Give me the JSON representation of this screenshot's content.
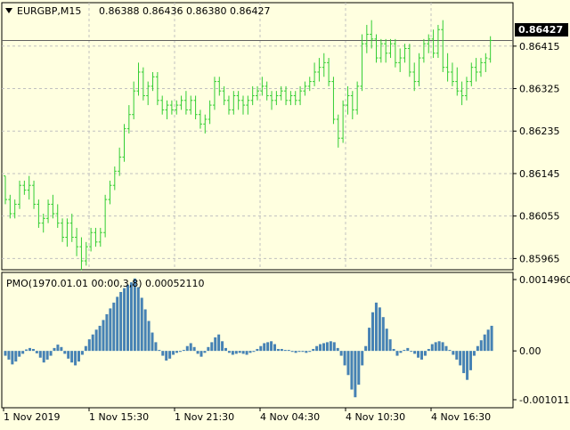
{
  "header": {
    "symbol_timeframe": "EURGBP,M15",
    "ohlc": "0.86388 0.86436 0.86380 0.86427",
    "dropdown_icon": "triangle-down-icon"
  },
  "current_price_label": "0.86427",
  "indicator": {
    "label": "PMO(1970.01.01 00:00,3,8) 0.00052110",
    "axis_labels": [
      "0.0014960",
      "0.00",
      "-0.0010112"
    ]
  },
  "colors": {
    "background": "#ffffe0",
    "candles": "#32cd32",
    "histogram": "#4682b4",
    "grid": "#c0c0c0",
    "frame": "#000000"
  },
  "chart_data": [
    {
      "type": "bar",
      "title": "EURGBP,M15",
      "series": [
        {
          "name": "EURGBP,M15",
          "ohlc": [
            [
              0.8614,
              0.8614,
              0.8608,
              0.8609
            ],
            [
              0.8609,
              0.861,
              0.8605,
              0.8606
            ],
            [
              0.8606,
              0.8609,
              0.8605,
              0.8608
            ],
            [
              0.8608,
              0.8613,
              0.8607,
              0.8612
            ],
            [
              0.8612,
              0.8613,
              0.861,
              0.8611
            ],
            [
              0.8611,
              0.8614,
              0.8609,
              0.8612
            ],
            [
              0.8612,
              0.8613,
              0.8607,
              0.8608
            ],
            [
              0.8608,
              0.8609,
              0.8603,
              0.8604
            ],
            [
              0.8604,
              0.8606,
              0.8602,
              0.8605
            ],
            [
              0.8605,
              0.8609,
              0.8604,
              0.8608
            ],
            [
              0.8608,
              0.861,
              0.8605,
              0.8606
            ],
            [
              0.8606,
              0.8608,
              0.8603,
              0.8604
            ],
            [
              0.8604,
              0.8605,
              0.86,
              0.8601
            ],
            [
              0.8601,
              0.8605,
              0.8599,
              0.8604
            ],
            [
              0.8604,
              0.8606,
              0.86,
              0.8601
            ],
            [
              0.8601,
              0.8603,
              0.8597,
              0.8599
            ],
            [
              0.8599,
              0.8601,
              0.8594,
              0.8596
            ],
            [
              0.8596,
              0.86,
              0.8595,
              0.8599
            ],
            [
              0.8599,
              0.8603,
              0.8598,
              0.8602
            ],
            [
              0.8602,
              0.8603,
              0.8599,
              0.86
            ],
            [
              0.86,
              0.8603,
              0.8599,
              0.8602
            ],
            [
              0.8602,
              0.861,
              0.8601,
              0.8609
            ],
            [
              0.8609,
              0.8613,
              0.8608,
              0.8612
            ],
            [
              0.8612,
              0.8616,
              0.8611,
              0.8615
            ],
            [
              0.8615,
              0.862,
              0.8614,
              0.8618
            ],
            [
              0.8618,
              0.8625,
              0.8617,
              0.8624
            ],
            [
              0.8624,
              0.8629,
              0.8623,
              0.8627
            ],
            [
              0.8627,
              0.8634,
              0.8626,
              0.8632
            ],
            [
              0.8632,
              0.8638,
              0.8631,
              0.8636
            ],
            [
              0.8636,
              0.8637,
              0.863,
              0.8631
            ],
            [
              0.8631,
              0.8634,
              0.8629,
              0.8633
            ],
            [
              0.8633,
              0.8636,
              0.8632,
              0.8635
            ],
            [
              0.8635,
              0.8636,
              0.8629,
              0.863
            ],
            [
              0.863,
              0.8631,
              0.8627,
              0.8628
            ],
            [
              0.8628,
              0.863,
              0.8626,
              0.8629
            ],
            [
              0.8629,
              0.863,
              0.8627,
              0.8628
            ],
            [
              0.8628,
              0.863,
              0.8627,
              0.8629
            ],
            [
              0.8629,
              0.8631,
              0.8628,
              0.863
            ],
            [
              0.863,
              0.8632,
              0.8627,
              0.8628
            ],
            [
              0.8628,
              0.8631,
              0.8627,
              0.863
            ],
            [
              0.863,
              0.8631,
              0.8626,
              0.8627
            ],
            [
              0.8627,
              0.8628,
              0.8624,
              0.8625
            ],
            [
              0.8625,
              0.8627,
              0.8623,
              0.8626
            ],
            [
              0.8626,
              0.863,
              0.8625,
              0.8629
            ],
            [
              0.8629,
              0.8635,
              0.8628,
              0.8634
            ],
            [
              0.8634,
              0.8635,
              0.8631,
              0.8632
            ],
            [
              0.8632,
              0.8633,
              0.8629,
              0.863
            ],
            [
              0.863,
              0.8631,
              0.8627,
              0.8628
            ],
            [
              0.8628,
              0.8632,
              0.8627,
              0.8631
            ],
            [
              0.8631,
              0.8632,
              0.8628,
              0.863
            ],
            [
              0.863,
              0.8631,
              0.8627,
              0.8629
            ],
            [
              0.8629,
              0.8631,
              0.8627,
              0.863
            ],
            [
              0.863,
              0.8633,
              0.8629,
              0.8631
            ],
            [
              0.8631,
              0.8633,
              0.863,
              0.8632
            ],
            [
              0.8632,
              0.8635,
              0.8631,
              0.8633
            ],
            [
              0.8633,
              0.8634,
              0.863,
              0.8631
            ],
            [
              0.8631,
              0.8632,
              0.8628,
              0.863
            ],
            [
              0.863,
              0.8632,
              0.8629,
              0.8631
            ],
            [
              0.8631,
              0.8633,
              0.863,
              0.8632
            ],
            [
              0.8632,
              0.8633,
              0.8629,
              0.863
            ],
            [
              0.863,
              0.8632,
              0.8629,
              0.8631
            ],
            [
              0.8631,
              0.8632,
              0.8629,
              0.863
            ],
            [
              0.863,
              0.8633,
              0.8629,
              0.8632
            ],
            [
              0.8632,
              0.8634,
              0.8631,
              0.8633
            ],
            [
              0.8633,
              0.8635,
              0.8632,
              0.8634
            ],
            [
              0.8634,
              0.8638,
              0.8633,
              0.8636
            ],
            [
              0.8636,
              0.8639,
              0.8634,
              0.8637
            ],
            [
              0.8637,
              0.864,
              0.8635,
              0.8638
            ],
            [
              0.8638,
              0.8639,
              0.8633,
              0.8634
            ],
            [
              0.8634,
              0.8635,
              0.8625,
              0.8626
            ],
            [
              0.8626,
              0.8627,
              0.862,
              0.8622
            ],
            [
              0.8622,
              0.863,
              0.8621,
              0.8629
            ],
            [
              0.8629,
              0.8633,
              0.8627,
              0.8631
            ],
            [
              0.8631,
              0.8632,
              0.8626,
              0.8628
            ],
            [
              0.8628,
              0.8634,
              0.8627,
              0.8633
            ],
            [
              0.8633,
              0.8644,
              0.8632,
              0.8642
            ],
            [
              0.8642,
              0.8646,
              0.864,
              0.8644
            ],
            [
              0.8644,
              0.8647,
              0.8641,
              0.8643
            ],
            [
              0.8643,
              0.8644,
              0.8638,
              0.8639
            ],
            [
              0.8639,
              0.8643,
              0.8638,
              0.8642
            ],
            [
              0.8642,
              0.8643,
              0.8638,
              0.864
            ],
            [
              0.864,
              0.8643,
              0.8639,
              0.8642
            ],
            [
              0.8642,
              0.8643,
              0.8637,
              0.8638
            ],
            [
              0.8638,
              0.8641,
              0.8636,
              0.8639
            ],
            [
              0.8639,
              0.8642,
              0.8638,
              0.8641
            ],
            [
              0.8641,
              0.8642,
              0.8635,
              0.8636
            ],
            [
              0.8636,
              0.8638,
              0.8632,
              0.8634
            ],
            [
              0.8634,
              0.864,
              0.8633,
              0.8639
            ],
            [
              0.8639,
              0.8643,
              0.8638,
              0.8642
            ],
            [
              0.8642,
              0.8644,
              0.864,
              0.8643
            ],
            [
              0.8643,
              0.8645,
              0.8639,
              0.864
            ],
            [
              0.864,
              0.8646,
              0.8639,
              0.8645
            ],
            [
              0.8645,
              0.8647,
              0.8636,
              0.8637
            ],
            [
              0.8637,
              0.864,
              0.8634,
              0.8636
            ],
            [
              0.8636,
              0.8638,
              0.8633,
              0.8634
            ],
            [
              0.8634,
              0.8637,
              0.8631,
              0.8632
            ],
            [
              0.8632,
              0.8634,
              0.8629,
              0.8631
            ],
            [
              0.8631,
              0.8635,
              0.863,
              0.8634
            ],
            [
              0.8634,
              0.8638,
              0.8633,
              0.8637
            ],
            [
              0.8637,
              0.8639,
              0.8634,
              0.8636
            ],
            [
              0.8636,
              0.8639,
              0.8635,
              0.8638
            ],
            [
              0.8638,
              0.864,
              0.8636,
              0.8639
            ],
            [
              0.86388,
              0.86436,
              0.8638,
              0.86427
            ]
          ]
        }
      ],
      "x_tick_labels": [
        "1 Nov 2019",
        "1 Nov 15:30",
        "1 Nov 21:30",
        "4 Nov 04:30",
        "4 Nov 10:30",
        "4 Nov 16:30"
      ],
      "y_tick_labels": [
        "0.86415",
        "0.86325",
        "0.86235",
        "0.86145",
        "0.86055",
        "0.85965"
      ],
      "ylim": [
        0.85945,
        0.86475
      ],
      "grid": true
    },
    {
      "type": "bar",
      "title": "PMO(1970.01.01 00:00,3,8) 0.00052110",
      "series": [
        {
          "name": "PMO",
          "values": [
            -0.0001,
            -0.00018,
            -0.00028,
            -0.00022,
            -0.00012,
            -6e-05,
            3e-05,
            6e-05,
            4e-05,
            -5e-05,
            -0.00014,
            -0.00024,
            -0.00018,
            -0.0001,
            6e-05,
            0.00013,
            8e-05,
            -6e-05,
            -0.00016,
            -0.00024,
            -0.0003,
            -0.00022,
            -8e-05,
            0.0001,
            0.00024,
            0.00034,
            0.00044,
            0.00052,
            0.00064,
            0.00076,
            0.00088,
            0.001,
            0.00112,
            0.00122,
            0.0013,
            0.00137,
            0.00142,
            0.0015,
            0.00132,
            0.0011,
            0.00086,
            0.00062,
            0.00038,
            0.00018,
            2e-05,
            -0.0001,
            -0.0002,
            -0.00016,
            -8e-05,
            -4e-05,
            -2e-05,
            2e-05,
            0.0001,
            0.00016,
            8e-05,
            -6e-05,
            -0.00012,
            -4e-05,
            8e-05,
            0.00018,
            0.00028,
            0.00034,
            0.0002,
            6e-05,
            -4e-05,
            -8e-05,
            -6e-05,
            -4e-05,
            -6e-05,
            -8e-05,
            -4e-05,
            -2e-05,
            4e-05,
            0.0001,
            0.00016,
            0.00018,
            0.0002,
            0.00014,
            4e-05,
            4e-05,
            2e-05,
            2e-05,
            -2e-05,
            -4e-05,
            -2e-05,
            -2e-05,
            -4e-05,
            -2e-05,
            4e-05,
            0.0001,
            0.00014,
            0.00016,
            0.00018,
            0.0002,
            0.00018,
            6e-05,
            -0.0001,
            -0.0003,
            -0.0005,
            -0.0008,
            -0.00096,
            -0.0007,
            -0.0003,
            0.0001,
            0.00048,
            0.0008,
            0.001,
            0.0009,
            0.0007,
            0.00046,
            0.00024,
            4e-05,
            -0.0001,
            -4e-05,
            2e-05,
            6e-05,
            0.0,
            -6e-05,
            -0.00014,
            -0.00018,
            -0.0001,
            4e-05,
            0.00014,
            0.00018,
            0.0002,
            0.00018,
            0.0001,
            2e-05,
            -8e-05,
            -0.00018,
            -0.0003,
            -0.00046,
            -0.0006,
            -0.0004,
            -0.0001,
            0.0001,
            0.00022,
            0.00034,
            0.00044,
            0.00052
          ]
        }
      ],
      "y_tick_labels": [
        "0.0014960",
        "0.00",
        "-0.0010112"
      ],
      "ylim": [
        -0.0010112,
        0.001496
      ],
      "grid": false
    }
  ]
}
